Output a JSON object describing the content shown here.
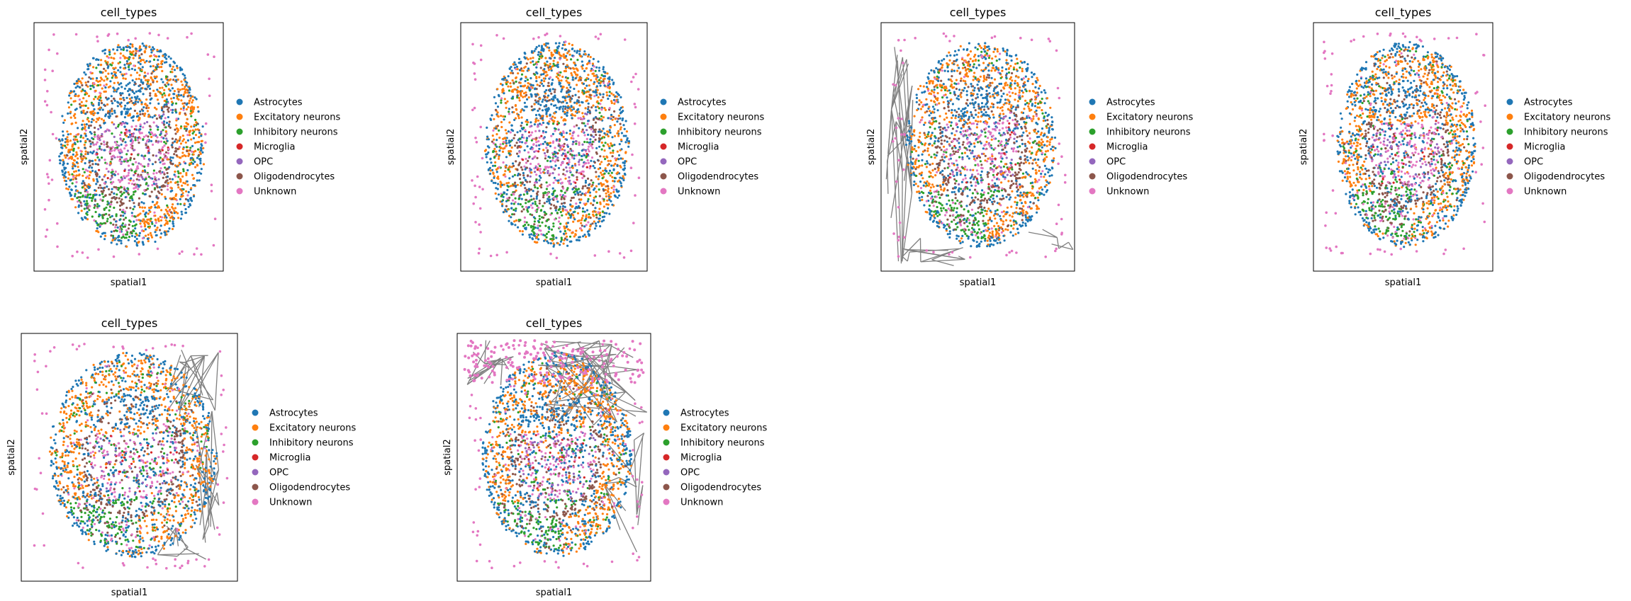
{
  "figure": {
    "legend_labels": [
      "Astrocytes",
      "Excitatory neurons",
      "Inhibitory neurons",
      "Microglia",
      "OPC",
      "Oligodendrocytes",
      "Unknown"
    ],
    "legend_colors": [
      "#1f77b4",
      "#ff7f0e",
      "#2ca02c",
      "#d62728",
      "#9467bd",
      "#8c564b",
      "#e377c2"
    ],
    "edge_color": "#808080"
  },
  "chart_data": [
    {
      "type": "scatter",
      "title": "cell_types",
      "xlabel": "spatial1",
      "ylabel": "spatial2",
      "grid": false,
      "legend_position": "right",
      "series": [
        {
          "name": "Astrocytes"
        },
        {
          "name": "Excitatory neurons"
        },
        {
          "name": "Inhibitory neurons"
        },
        {
          "name": "Microglia"
        },
        {
          "name": "OPC"
        },
        {
          "name": "Oligodendrocytes"
        },
        {
          "name": "Unknown"
        }
      ]
    },
    {
      "type": "scatter",
      "title": "cell_types",
      "xlabel": "spatial1",
      "ylabel": "spatial2",
      "grid": false,
      "legend_position": "right",
      "series": [
        {
          "name": "Astrocytes"
        },
        {
          "name": "Excitatory neurons"
        },
        {
          "name": "Inhibitory neurons"
        },
        {
          "name": "Microglia"
        },
        {
          "name": "OPC"
        },
        {
          "name": "Oligodendrocytes"
        },
        {
          "name": "Unknown"
        }
      ]
    },
    {
      "type": "scatter",
      "title": "cell_types",
      "xlabel": "spatial1",
      "ylabel": "spatial2",
      "grid": false,
      "legend_position": "right",
      "series": [
        {
          "name": "Astrocytes"
        },
        {
          "name": "Excitatory neurons"
        },
        {
          "name": "Inhibitory neurons"
        },
        {
          "name": "Microglia"
        },
        {
          "name": "OPC"
        },
        {
          "name": "Oligodendrocytes"
        },
        {
          "name": "Unknown"
        }
      ]
    },
    {
      "type": "scatter",
      "title": "cell_types",
      "xlabel": "spatial1",
      "ylabel": "spatial2",
      "grid": false,
      "legend_position": "right",
      "series": [
        {
          "name": "Astrocytes"
        },
        {
          "name": "Excitatory neurons"
        },
        {
          "name": "Inhibitory neurons"
        },
        {
          "name": "Microglia"
        },
        {
          "name": "OPC"
        },
        {
          "name": "Oligodendrocytes"
        },
        {
          "name": "Unknown"
        }
      ]
    },
    {
      "type": "scatter",
      "title": "cell_types",
      "xlabel": "spatial1",
      "ylabel": "spatial2",
      "grid": false,
      "legend_position": "right",
      "series": [
        {
          "name": "Astrocytes"
        },
        {
          "name": "Excitatory neurons"
        },
        {
          "name": "Inhibitory neurons"
        },
        {
          "name": "Microglia"
        },
        {
          "name": "OPC"
        },
        {
          "name": "Oligodendrocytes"
        },
        {
          "name": "Unknown"
        }
      ]
    },
    {
      "type": "scatter",
      "title": "cell_types",
      "xlabel": "spatial1",
      "ylabel": "spatial2",
      "grid": false,
      "legend_position": "right",
      "series": [
        {
          "name": "Astrocytes"
        },
        {
          "name": "Excitatory neurons"
        },
        {
          "name": "Inhibitory neurons"
        },
        {
          "name": "Microglia"
        },
        {
          "name": "OPC"
        },
        {
          "name": "Oligodendrocytes"
        },
        {
          "name": "Unknown"
        }
      ]
    }
  ]
}
